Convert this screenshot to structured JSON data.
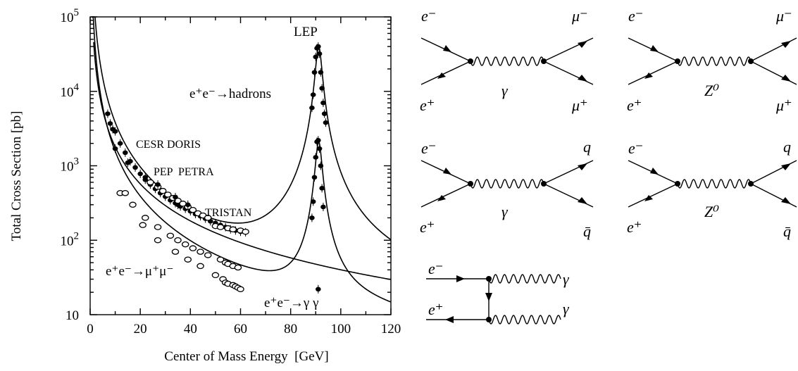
{
  "chart_data": {
    "type": "scatter",
    "title": "",
    "xlabel": "Center of Mass Energy  [GeV]",
    "ylabel": "Total Cross Section  [pb]",
    "xlim": [
      0,
      120
    ],
    "ylim": [
      10,
      100000
    ],
    "yscale": "log",
    "x_ticks": [
      "0",
      "20",
      "40",
      "60",
      "80",
      "100",
      "120"
    ],
    "y_ticks": [
      {
        "base": "10",
        "exp": "5",
        "value": 100000
      },
      {
        "base": "10",
        "exp": "4",
        "value": 10000
      },
      {
        "base": "10",
        "exp": "3",
        "value": 1000
      },
      {
        "base": "10",
        "exp": "2",
        "value": 100
      },
      {
        "base": "10",
        "exp": "",
        "value": 10
      }
    ],
    "annotations": {
      "lep": "LEP",
      "cesr_doris": "CESR DORIS",
      "pep_petra": "PEP  PETRA",
      "tristan": "TRISTAN",
      "hadrons": "e⁺e⁻→hadrons",
      "mumu": "e⁺e⁻→μ⁺μ⁻",
      "gammagamma": "e⁺e⁻→γ γ"
    },
    "series": [
      {
        "marker": "filled-dot",
        "x": [
          7,
          8,
          9,
          10,
          12,
          14,
          16,
          18,
          20,
          22,
          24,
          26,
          28,
          30,
          32,
          34,
          35,
          36,
          38,
          40,
          42,
          44,
          46,
          48,
          50,
          52,
          54,
          56,
          58,
          60,
          62
        ],
        "y": [
          5000,
          3700,
          3100,
          2900,
          2000,
          1500,
          1150,
          950,
          780,
          650,
          560,
          490,
          430,
          385,
          345,
          315,
          300,
          285,
          265,
          245,
          225,
          210,
          195,
          180,
          170,
          160,
          150,
          140,
          135,
          130,
          128
        ]
      },
      {
        "marker": "open-circle",
        "x": [
          24,
          27,
          29,
          31,
          33,
          35,
          37,
          39,
          41,
          43,
          45,
          47,
          50,
          52,
          55,
          57,
          60,
          62
        ],
        "y": [
          600,
          520,
          460,
          410,
          370,
          340,
          310,
          280,
          255,
          230,
          215,
          200,
          155,
          150,
          145,
          140,
          135,
          130
        ]
      },
      {
        "marker": "filled-dot",
        "x": [
          88.5,
          89,
          89.5,
          90,
          90.5,
          91,
          91.5,
          92,
          92.5,
          93,
          93.5,
          94
        ],
        "y": [
          6000,
          9000,
          18000,
          29000,
          38000,
          40000,
          32000,
          18000,
          11000,
          7000,
          5000,
          3800
        ]
      },
      {
        "marker": "filled-dot",
        "x": [
          88.5,
          89,
          89.5,
          90,
          90.5,
          91,
          91.5,
          92,
          92.5,
          93
        ],
        "y": [
          200,
          330,
          700,
          1300,
          2100,
          2200,
          1700,
          1000,
          500,
          280
        ]
      },
      {
        "marker": "filled-dot",
        "x": [
          10,
          15,
          22,
          27,
          34,
          39
        ],
        "y": [
          1700,
          1100,
          700,
          560,
          380,
          300
        ]
      },
      {
        "marker": "open-circle",
        "x": [
          12,
          17,
          22,
          27,
          32,
          35,
          38,
          41,
          44,
          47,
          52,
          54,
          55,
          57,
          59
        ],
        "y": [
          430,
          300,
          200,
          150,
          115,
          100,
          88,
          78,
          70,
          63,
          55,
          50,
          48,
          45,
          43
        ]
      },
      {
        "marker": "open-circle",
        "x": [
          14,
          21,
          27,
          34,
          39,
          44,
          50,
          53,
          54,
          55,
          57,
          58,
          59,
          60
        ],
        "y": [
          430,
          160,
          100,
          70,
          55,
          45,
          34,
          30,
          27,
          26,
          25,
          24,
          23,
          22
        ]
      },
      {
        "marker": "filled-dot",
        "x": [
          91
        ],
        "y": [
          22
        ]
      }
    ]
  },
  "diagrams": {
    "ee_mumu_gamma": {
      "in_top": "e⁻",
      "in_bot": "e⁺",
      "mediator": "γ",
      "out_top": "μ⁻",
      "out_bot": "μ⁺"
    },
    "ee_mumu_z": {
      "in_top": "e⁻",
      "in_bot": "e⁺",
      "mediator": "Z⁰",
      "out_top": "μ⁻",
      "out_bot": "μ⁺"
    },
    "ee_qq_gamma": {
      "in_top": "e⁻",
      "in_bot": "e⁺",
      "mediator": "γ",
      "out_top": "q",
      "out_bot": "q̄"
    },
    "ee_qq_z": {
      "in_top": "e⁻",
      "in_bot": "e⁺",
      "mediator": "Z⁰",
      "out_top": "q",
      "out_bot": "q̄"
    },
    "ee_gammagamma": {
      "in_top": "e⁻",
      "in_bot": "e⁺",
      "out_top": "γ",
      "out_bot": "γ"
    }
  }
}
